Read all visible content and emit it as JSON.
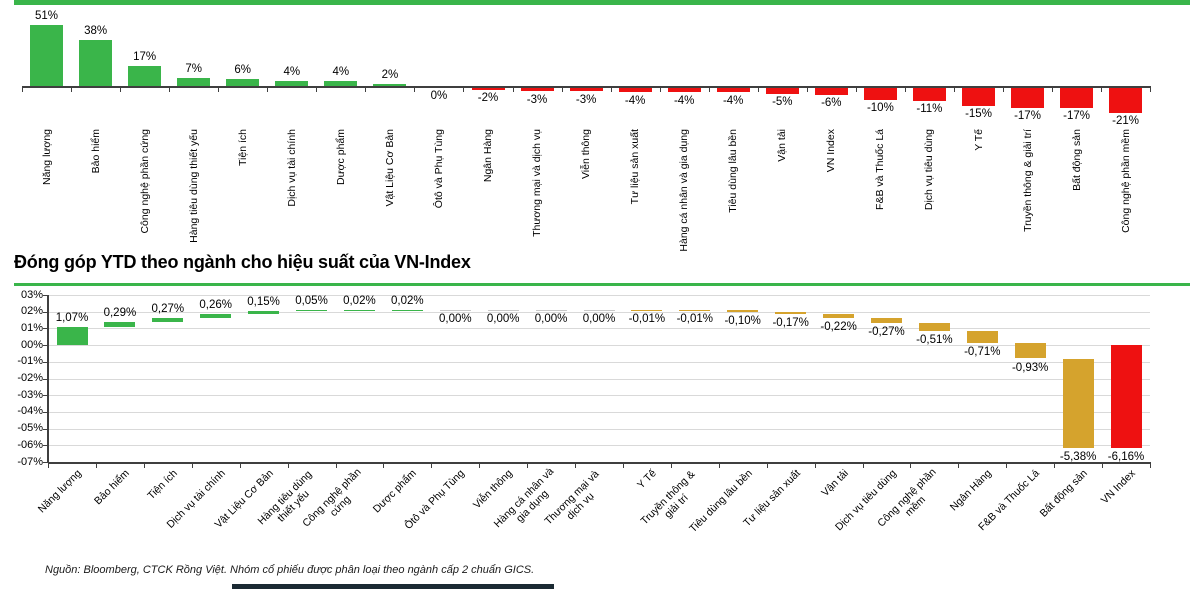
{
  "page": {
    "source_note": "Nguồn: Bloomberg, CTCK Rồng Việt. Nhóm cổ phiếu được phân loại theo ngành cấp 2 chuẩn GICS."
  },
  "colors": {
    "green": "#3ab54a",
    "red": "#ee1111",
    "gold": "#d5a32d",
    "zero": "#c9c9c9",
    "axis": "#3f3f3f",
    "grid": "#d9d9d9",
    "text": "#000000",
    "rule_green": "#3ab54a",
    "strip_dark": "#1b2a33"
  },
  "chart_data": [
    {
      "type": "bar",
      "name": "ytd-sector-performance",
      "title": "",
      "categories": [
        "Năng lượng",
        "Bảo hiểm",
        "Công nghệ phần cứng",
        "Hàng tiêu dùng thiết yếu",
        "Tiện ích",
        "Dịch vụ tài chính",
        "Dược phẩm",
        "Vật Liệu Cơ Bản",
        "Ôtô và Phụ Tùng",
        "Ngân Hàng",
        "Thương mại và dịch vụ",
        "Viễn thông",
        "Tư liệu sản xuất",
        "Hàng cá nhân và gia dụng",
        "Tiêu dùng lâu bền",
        "Vận tải",
        "VN Index",
        "F&B và Thuốc Lá",
        "Dịch vụ tiêu dùng",
        "Y Tế",
        "Truyền thông & giải trí",
        "Bất động sản",
        "Công nghệ phần mềm"
      ],
      "values": [
        51,
        38,
        17,
        7,
        6,
        4,
        4,
        2,
        0,
        -2,
        -3,
        -3,
        -4,
        -4,
        -4,
        -5,
        -6,
        -10,
        -11,
        -15,
        -17,
        -17,
        -21
      ],
      "value_labels": [
        "51%",
        "38%",
        "17%",
        "7%",
        "6%",
        "4%",
        "4%",
        "2%",
        "0%",
        "-2%",
        "-3%",
        "-3%",
        "-4%",
        "-4%",
        "-4%",
        "-5%",
        "-6%",
        "-10%",
        "-11%",
        "-15%",
        "-17%",
        "-17%",
        "-21%"
      ],
      "ylim": [
        -25,
        55
      ],
      "grid": false,
      "positive_color": "green",
      "negative_color": "red"
    },
    {
      "type": "waterfall",
      "name": "ytd-contribution-to-vnindex",
      "title": "Đóng góp YTD theo ngành cho hiệu suất của VN-Index",
      "categories": [
        "Năng lượng",
        "Bảo hiểm",
        "Tiện ích",
        "Dịch vụ tài chính",
        "Vật Liệu Cơ Bản",
        "Hàng tiêu dùng thiết yếu",
        "Công nghệ phần cứng",
        "Dược phẩm",
        "Ôtô và Phụ Tùng",
        "Viễn thông",
        "Hàng cá nhân và gia dụng",
        "Thương mại và dịch vụ",
        "Y Tế",
        "Truyền thông & giải trí",
        "Tiêu dùng lâu bền",
        "Tư liệu sản xuất",
        "Vận tải",
        "Dịch vụ tiêu dùng",
        "Công nghệ phần mềm",
        "Ngân Hàng",
        "F&B và Thuốc Lá",
        "Bất động sản",
        "VN Index"
      ],
      "values": [
        1.07,
        0.29,
        0.27,
        0.26,
        0.15,
        0.05,
        0.02,
        0.02,
        0.0,
        0.0,
        0.0,
        0.0,
        -0.01,
        -0.01,
        -0.1,
        -0.17,
        -0.22,
        -0.27,
        -0.51,
        -0.71,
        -0.93,
        -5.38,
        -6.16
      ],
      "value_labels": [
        "1,07%",
        "0,29%",
        "0,27%",
        "0,26%",
        "0,15%",
        "0,05%",
        "0,02%",
        "0,02%",
        "0,00%",
        "0,00%",
        "0,00%",
        "0,00%",
        "-0,01%",
        "-0,01%",
        "-0,10%",
        "-0,17%",
        "-0,22%",
        "-0,27%",
        "-0,51%",
        "-0,71%",
        "-0,93%",
        "-5,38%",
        "-6,16%"
      ],
      "ytick_labels": [
        "03%",
        "02%",
        "01%",
        "00%",
        "-01%",
        "-02%",
        "-03%",
        "-04%",
        "-05%",
        "-06%",
        "-07%"
      ],
      "ylim": [
        -7,
        3
      ],
      "grid": true,
      "total_category": "VN Index",
      "positive_color": "green",
      "negative_color": "gold",
      "total_color": "red"
    }
  ]
}
